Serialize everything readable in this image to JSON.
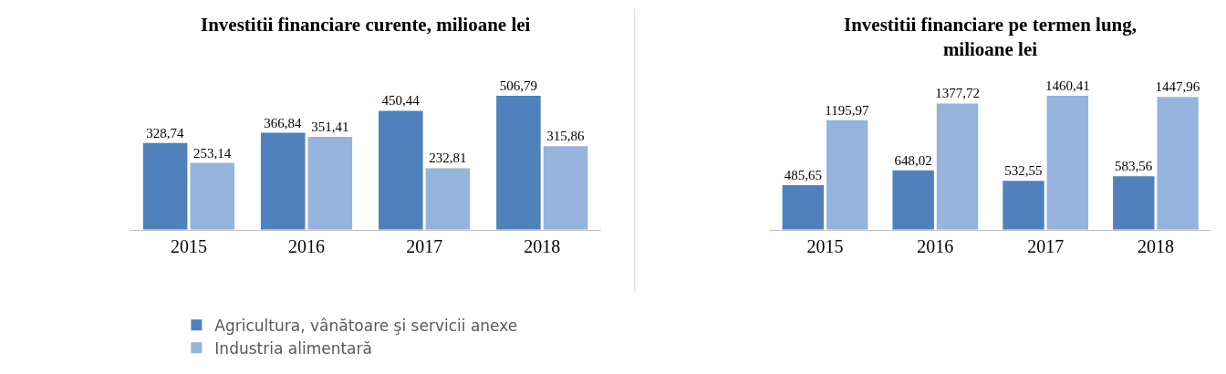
{
  "chart_data": [
    {
      "type": "bar",
      "title": "Investitii financiare curente, milioane lei",
      "categories": [
        "2015",
        "2016",
        "2017",
        "2018"
      ],
      "legend": "bottom",
      "series": [
        {
          "name": "Agricultura, vânătoare şi servicii anexe",
          "color": "#4f81bd",
          "values": [
            328.74,
            366.84,
            450.44,
            506.79
          ],
          "value_labels": [
            "328,74",
            "366,84",
            "450,44",
            "506,79"
          ]
        },
        {
          "name": "Industria alimentară",
          "color": "#95b3dd",
          "values": [
            253.14,
            351.41,
            232.81,
            315.86
          ],
          "value_labels": [
            "253,14",
            "351,41",
            "232,81",
            "315,86"
          ]
        }
      ]
    },
    {
      "type": "bar",
      "title": "Investitii financiare pe termen lung,\nmilioane lei",
      "categories": [
        "2015",
        "2016",
        "2017",
        "2018"
      ],
      "series": [
        {
          "color": "#4f81bd",
          "values": [
            485.65,
            648.02,
            532.55,
            583.56
          ],
          "value_labels": [
            "485,65",
            "648,02",
            "532,55",
            "583,56"
          ]
        },
        {
          "color": "#95b3dd",
          "values": [
            1195.97,
            1377.72,
            1460.41,
            1447.96
          ],
          "value_labels": [
            "1195,97",
            "1377,72",
            "1460,41",
            "1447,96"
          ]
        }
      ]
    }
  ]
}
